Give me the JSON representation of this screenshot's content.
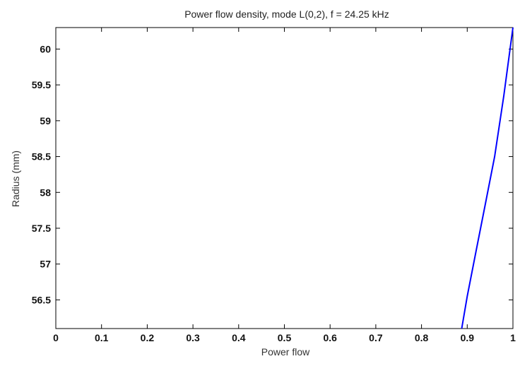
{
  "chart_data": {
    "type": "line",
    "title": "Power flow density, mode L(0,2), f = 24.25 kHz",
    "xlabel": "Power flow",
    "ylabel": "Radius (mm)",
    "xlim": [
      0,
      1
    ],
    "ylim": [
      56.1,
      60.3
    ],
    "x_ticks": [
      0,
      0.1,
      0.2,
      0.3,
      0.4,
      0.5,
      0.6,
      0.7,
      0.8,
      0.9,
      1
    ],
    "x_tick_labels": [
      "0",
      "0.1",
      "0.2",
      "0.3",
      "0.4",
      "0.5",
      "0.6",
      "0.7",
      "0.8",
      "0.9",
      "1"
    ],
    "y_ticks": [
      56.5,
      57,
      57.5,
      58,
      58.5,
      59,
      59.5,
      60
    ],
    "y_tick_labels": [
      "56.5",
      "57",
      "57.5",
      "58",
      "58.5",
      "59",
      "59.5",
      "60"
    ],
    "grid": false,
    "legend": "none",
    "series": [
      {
        "color": "#0000ff",
        "x": [
          0.888,
          0.9,
          0.92,
          0.94,
          0.96,
          0.98,
          1.0
        ],
        "y": [
          56.1,
          56.55,
          57.2,
          57.85,
          58.5,
          59.35,
          60.3
        ]
      }
    ]
  }
}
